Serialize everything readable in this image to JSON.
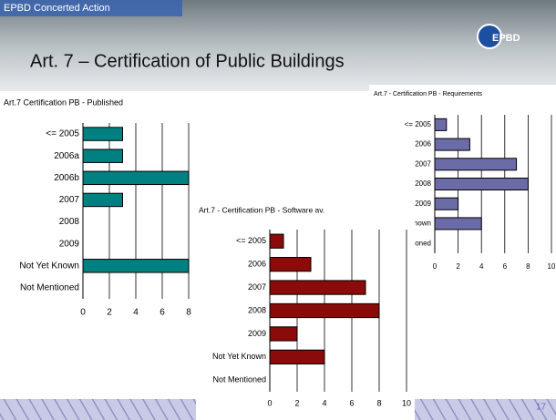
{
  "header": {
    "org": "EPBD Concerted Action",
    "title": "Art. 7 – Certification of Public Buildings",
    "logo": "EPBD",
    "page": "17"
  },
  "chart_data": [
    {
      "type": "bar",
      "orientation": "horizontal",
      "title": "Art.7 Certification PB - Published",
      "categories": [
        "<= 2005",
        "2006a",
        "2006b",
        "2007",
        "2008",
        "2009",
        "Not Yet Known",
        "Not Mentioned"
      ],
      "values": [
        3,
        3,
        8,
        3,
        0,
        0,
        8,
        0
      ],
      "color": "#008080",
      "xlim": [
        0,
        8
      ],
      "xticks": [
        0,
        2,
        4,
        6,
        8
      ],
      "grid": true
    },
    {
      "type": "bar",
      "orientation": "horizontal",
      "title": "Art.7 - Certification PB - Requirements",
      "categories": [
        "<= 2005",
        "2006",
        "2007",
        "2008",
        "2009",
        "Not Yet Known",
        "Not Mentioned"
      ],
      "values": [
        1,
        3,
        7,
        8,
        2,
        4,
        0
      ],
      "color": "#6b6ba8",
      "xlim": [
        0,
        10
      ],
      "xticks": [
        0,
        2,
        4,
        6,
        8,
        10
      ],
      "grid": true
    },
    {
      "type": "bar",
      "orientation": "horizontal",
      "title": "Art.7 - Certification PB - Software av.",
      "categories": [
        "<= 2005",
        "2006",
        "2007",
        "2008",
        "2009",
        "Not Yet Known",
        "Not Mentioned"
      ],
      "values": [
        1,
        3,
        7,
        8,
        2,
        4,
        0
      ],
      "color": "#8b0a0a",
      "xlim": [
        0,
        10
      ],
      "xticks": [
        0,
        2,
        4,
        6,
        8,
        10
      ],
      "grid": true
    }
  ]
}
